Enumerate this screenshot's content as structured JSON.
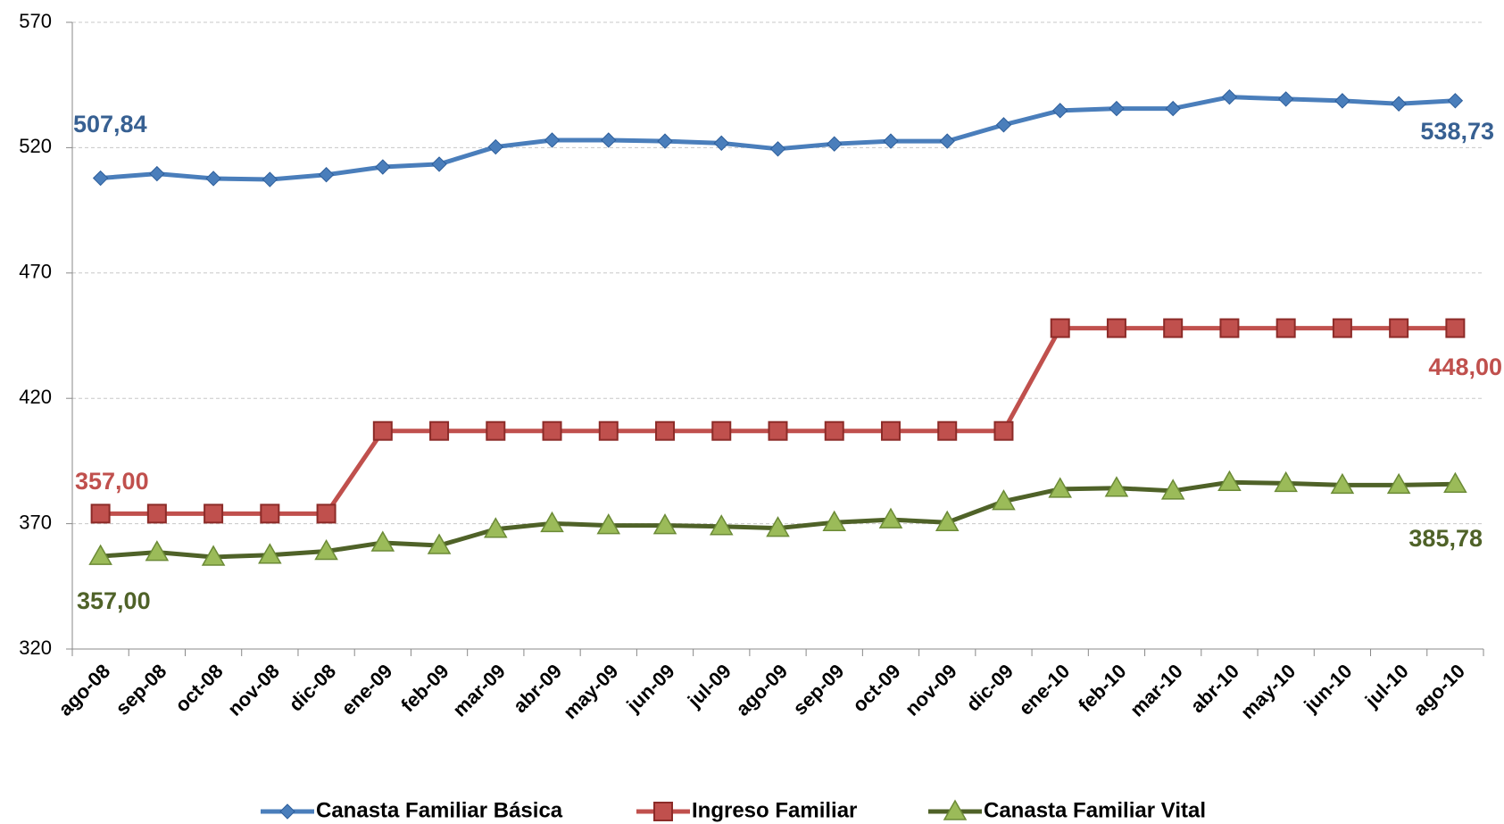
{
  "chart_data": {
    "type": "line",
    "categories": [
      "ago-08",
      "sep-08",
      "oct-08",
      "nov-08",
      "dic-08",
      "ene-09",
      "feb-09",
      "mar-09",
      "abr-09",
      "may-09",
      "jun-09",
      "jul-09",
      "ago-09",
      "sep-09",
      "oct-09",
      "nov-09",
      "dic-09",
      "ene-10",
      "feb-10",
      "mar-10",
      "abr-10",
      "may-10",
      "jun-10",
      "jul-10",
      "ago-10"
    ],
    "series": [
      {
        "name": "Canasta Familiar Básica",
        "color": "#4a7ebb",
        "marker": "diamond",
        "values": [
          507.84,
          509.6,
          507.7,
          507.3,
          509.2,
          512.3,
          513.4,
          520.3,
          523.0,
          523.0,
          522.6,
          521.8,
          519.5,
          521.5,
          522.6,
          522.6,
          529.1,
          534.8,
          535.6,
          535.6,
          540.2,
          539.4,
          538.7,
          537.5,
          538.73
        ],
        "value_labels": [
          "507,84",
          null,
          null,
          null,
          null,
          null,
          null,
          null,
          null,
          null,
          null,
          null,
          null,
          null,
          null,
          null,
          null,
          null,
          null,
          null,
          null,
          null,
          null,
          null,
          "538,73"
        ],
        "label_color": "#376092"
      },
      {
        "name": "Ingreso Familiar",
        "color": "#c0504d",
        "marker": "square",
        "values": [
          374,
          374,
          374,
          374,
          374,
          407,
          407,
          407,
          407,
          407,
          407,
          407,
          407,
          407,
          407,
          407,
          407,
          448,
          448,
          448,
          448,
          448,
          448,
          448,
          448
        ],
        "value_labels": [
          null,
          null,
          null,
          null,
          null,
          null,
          null,
          null,
          null,
          null,
          null,
          null,
          null,
          null,
          null,
          null,
          null,
          null,
          null,
          null,
          null,
          null,
          null,
          null,
          "448,00"
        ],
        "label_color": "#c0504d"
      },
      {
        "name": "Canasta Familiar Vital",
        "color": "#4f6228",
        "marker": "triangle",
        "marker_color": "#9bbb59",
        "values": [
          357,
          358.6,
          356.7,
          357.5,
          359,
          362.4,
          361.3,
          367.8,
          370.1,
          369.3,
          369.3,
          368.9,
          368.2,
          370.5,
          371.6,
          370.5,
          378.9,
          383.8,
          384.2,
          383.1,
          386.5,
          386.1,
          385.4,
          385.4,
          385.78
        ],
        "value_labels": [
          "357,00",
          null,
          null,
          null,
          null,
          null,
          null,
          null,
          null,
          null,
          null,
          null,
          null,
          null,
          null,
          null,
          null,
          null,
          null,
          null,
          null,
          null,
          null,
          null,
          "385,78"
        ],
        "label_color": "#4f6228"
      }
    ],
    "annotations": [
      "357,00"
    ],
    "ylim": [
      320,
      570
    ],
    "yticks": [
      320,
      370,
      420,
      470,
      520,
      570
    ],
    "grid": true,
    "legend": "bottom"
  }
}
